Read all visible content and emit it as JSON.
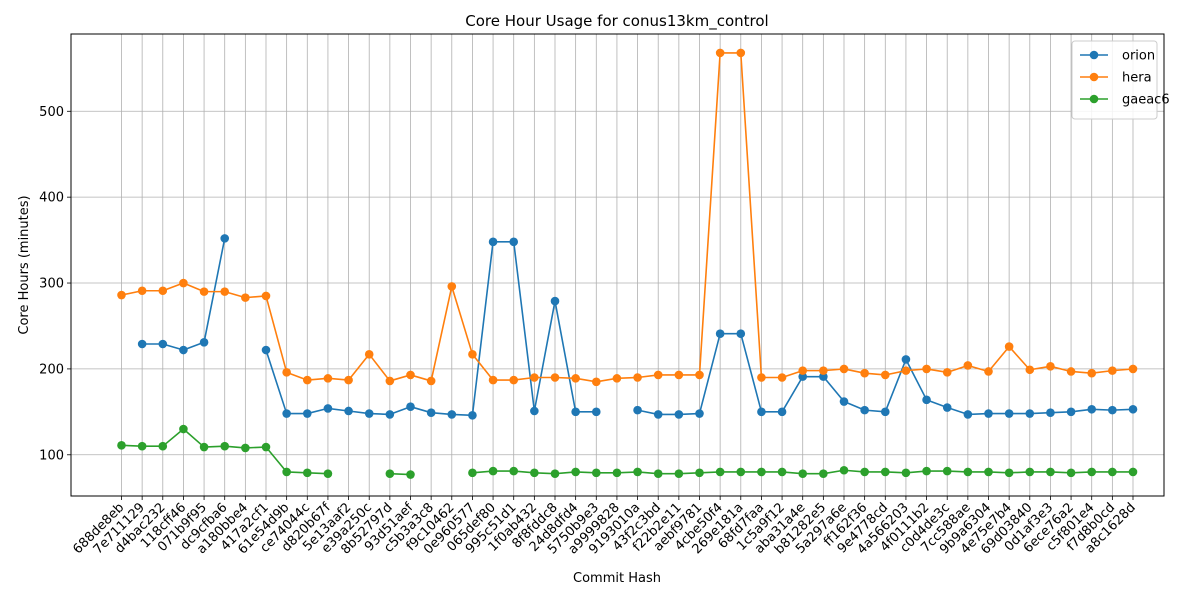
{
  "chart_data": {
    "type": "line",
    "title": "Core Hour Usage for conus13km_control",
    "xlabel": "Commit Hash",
    "ylabel": "Core Hours (minutes)",
    "ylim": [
      52,
      590
    ],
    "yticks": [
      100,
      200,
      300,
      400,
      500
    ],
    "grid": true,
    "legend_position": "top-right",
    "categories": [
      "688de8eb",
      "7e711129",
      "d4bac232",
      "118cff46",
      "071b9f95",
      "dc9cfba6",
      "a180bbe4",
      "417a2cf1",
      "61e54d9b",
      "ce74044c",
      "d820b67f",
      "5e13aaf2",
      "e39a250c",
      "8b52797d",
      "93d51aef",
      "c5b3a3c8",
      "f9c10462",
      "0e960577",
      "065def80",
      "995c51d1",
      "1f0ab432",
      "8f8fddc8",
      "24d8dfd4",
      "5750b9e3",
      "a9999828",
      "9193010a",
      "43f2c3bd",
      "f22b2e11",
      "aebf9781",
      "4cbe50f4",
      "269e181a",
      "68fd7faa",
      "1c5a9f12",
      "aba31a4e",
      "b81282e5",
      "5a297a6e",
      "ff162f36",
      "9e4778cd",
      "4a566203",
      "4f0111b2",
      "c0d4de3c",
      "7cc588ae",
      "9b9a6304",
      "4e75e7b4",
      "69d03840",
      "0d1af3e3",
      "6ece76a2",
      "c5f801e4",
      "f7d8b0cd",
      "a8c1628d"
    ],
    "series": [
      {
        "name": "orion",
        "color": "#1f77b4",
        "values": [
          null,
          229,
          229,
          222,
          231,
          352,
          null,
          222,
          148,
          148,
          154,
          151,
          148,
          147,
          156,
          149,
          147,
          146,
          348,
          348,
          151,
          279,
          150,
          150,
          null,
          152,
          147,
          147,
          148,
          241,
          241,
          150,
          150,
          191,
          191,
          162,
          152,
          150,
          211,
          164,
          155,
          147,
          148,
          148,
          148,
          149,
          150,
          153,
          152,
          153
        ]
      },
      {
        "name": "hera",
        "color": "#ff7f0e",
        "values": [
          286,
          291,
          291,
          300,
          290,
          290,
          283,
          285,
          196,
          187,
          189,
          187,
          217,
          186,
          193,
          186,
          296,
          217,
          187,
          187,
          190,
          190,
          189,
          185,
          189,
          190,
          193,
          193,
          193,
          568,
          568,
          190,
          190,
          198,
          198,
          200,
          195,
          193,
          198,
          200,
          196,
          204,
          197,
          226,
          199,
          203,
          197,
          195,
          198,
          200
        ]
      },
      {
        "name": "gaeac6",
        "color": "#2ca02c",
        "values": [
          111,
          110,
          110,
          130,
          109,
          110,
          108,
          109,
          80,
          79,
          78,
          null,
          null,
          78,
          77,
          null,
          null,
          79,
          81,
          81,
          79,
          78,
          80,
          79,
          79,
          80,
          78,
          78,
          79,
          80,
          80,
          80,
          80,
          78,
          78,
          82,
          80,
          80,
          79,
          81,
          81,
          80,
          80,
          79,
          80,
          80,
          79,
          80,
          80,
          80
        ]
      }
    ]
  }
}
